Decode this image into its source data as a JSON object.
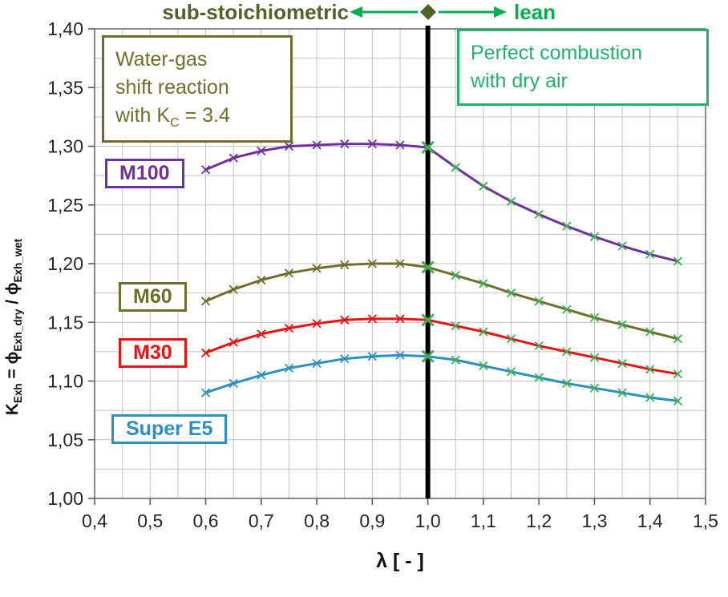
{
  "colors": {
    "purple": "#7030A0",
    "olive": "#6F6F2B",
    "red": "#E81414",
    "blue": "#2C90C0",
    "green": "#00B050",
    "light_green": "#1FB26C",
    "dark_green": "#4F6228",
    "grid": "#C3C3C3",
    "axis": "#595959",
    "tick_text": "#262626",
    "stoich_line": "#000000"
  },
  "annotations": {
    "sub_stoichiometric": "sub-stoichiometric",
    "lean": "lean",
    "water_gas": {
      "line1": "Water-gas",
      "line2": "shift reaction",
      "line3_pre": "with K",
      "line3_sub": "C",
      "line3_post": " = 3.4"
    },
    "perfect_combustion": {
      "line1": "Perfect combustion",
      "line2": "with dry air"
    }
  },
  "axis": {
    "x_title": "λ [ - ]",
    "y_title": {
      "k": "K",
      "k_sub": "Exh",
      "eq": " = ",
      "phi_dry": "ϕ",
      "phi_dry_sub": "Exh_dry",
      "slash": " / ",
      "phi_wet": "ϕ",
      "phi_wet_sub": "Exh_wet"
    }
  },
  "chart_data": {
    "type": "line",
    "title": "",
    "xlabel": "λ [ - ]",
    "ylabel": "K_Exh = phi_Exh_dry / phi_Exh_wet",
    "xlim": [
      0.4,
      1.5
    ],
    "ylim": [
      1.0,
      1.4
    ],
    "x_ticks": [
      0.4,
      0.5,
      0.6,
      0.7,
      0.8,
      0.9,
      1.0,
      1.1,
      1.2,
      1.3,
      1.4,
      1.5
    ],
    "x_tick_labels": [
      "0,4",
      "0,5",
      "0,6",
      "0,7",
      "0,8",
      "0,9",
      "1,0",
      "1,1",
      "1,2",
      "1,3",
      "1,4",
      "1,5"
    ],
    "y_ticks": [
      1.0,
      1.05,
      1.1,
      1.15,
      1.2,
      1.25,
      1.3,
      1.35,
      1.4
    ],
    "y_tick_labels": [
      "1,00",
      "1,05",
      "1,10",
      "1,15",
      "1,20",
      "1,25",
      "1,30",
      "1,35",
      "1,40"
    ],
    "grid": {
      "x_step": 0.05,
      "y_step": 0.025
    },
    "legend_position": "left-inline-boxes",
    "stoichiometric_line_x": 1.0,
    "marker_color_lean": "#3CB054",
    "x": [
      0.6,
      0.65,
      0.7,
      0.75,
      0.8,
      0.85,
      0.9,
      0.95,
      1.0,
      1.05,
      1.1,
      1.15,
      1.2,
      1.25,
      1.3,
      1.35,
      1.4,
      1.45
    ],
    "series": [
      {
        "name": "M100",
        "color": "#7030A0",
        "values": [
          1.28,
          1.29,
          1.296,
          1.3,
          1.301,
          1.302,
          1.302,
          1.301,
          1.299,
          1.282,
          1.266,
          1.253,
          1.242,
          1.232,
          1.223,
          1.215,
          1.208,
          1.202
        ]
      },
      {
        "name": "M60",
        "color": "#6F6F2B",
        "values": [
          1.168,
          1.178,
          1.186,
          1.192,
          1.196,
          1.199,
          1.2,
          1.2,
          1.197,
          1.19,
          1.183,
          1.175,
          1.168,
          1.161,
          1.154,
          1.148,
          1.142,
          1.136
        ]
      },
      {
        "name": "M30",
        "color": "#E81414",
        "values": [
          1.124,
          1.133,
          1.14,
          1.145,
          1.149,
          1.152,
          1.153,
          1.153,
          1.152,
          1.147,
          1.142,
          1.136,
          1.13,
          1.125,
          1.12,
          1.115,
          1.11,
          1.106
        ]
      },
      {
        "name": "Super E5",
        "color": "#2C90C0",
        "values": [
          1.09,
          1.098,
          1.105,
          1.111,
          1.115,
          1.119,
          1.121,
          1.122,
          1.121,
          1.118,
          1.113,
          1.108,
          1.103,
          1.098,
          1.094,
          1.09,
          1.086,
          1.083
        ]
      }
    ]
  }
}
